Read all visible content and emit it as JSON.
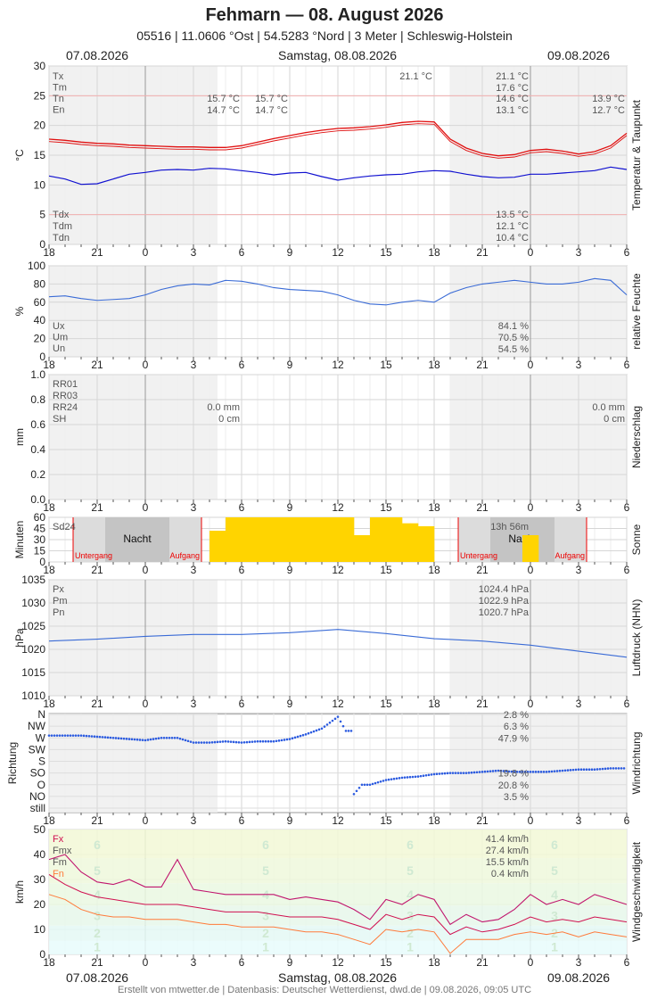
{
  "header": {
    "title": "Fehmarn  —  08. August 2026",
    "subtitle": "05516  |  11.0606 °Ost  |  54.5283 °Nord  |  3 Meter  |  Schleswig-Holstein",
    "day_prev": "07.08.2026",
    "day_main": "Samstag, 08.08.2026",
    "day_next": "09.08.2026"
  },
  "footer": "Erstellt von mtwetter.de | Datenbasis: Deutscher Wetterdienst, dwd.de | 09.08.2026, 09:05 UTC",
  "colors": {
    "temp": "#e01010",
    "dew": "#1010d0",
    "line": "#3a6bd6",
    "sun": "#ffd400",
    "gust": "#c0156e",
    "wind": "#d01050",
    "windmin": "#ff7a3a"
  },
  "chart_data": [
    {
      "id": "temperature",
      "type": "line",
      "side_label": "Temperatur & Taupunkt",
      "ylabel": "°C",
      "ylim": [
        0,
        30
      ],
      "yticks": [
        0,
        5,
        10,
        15,
        20,
        25,
        30
      ],
      "xticks": [
        "18",
        "21",
        "0",
        "3",
        "6",
        "9",
        "12",
        "15",
        "18",
        "21",
        "0",
        "3",
        "6"
      ],
      "series": [
        {
          "name": "Temperatur",
          "x": [
            0,
            1,
            2,
            3,
            4,
            5,
            6,
            7,
            8,
            9,
            10,
            11,
            12,
            13,
            14,
            15,
            16,
            17,
            18,
            19,
            20,
            21,
            22,
            23,
            24,
            25,
            26,
            27,
            28,
            29,
            30,
            31,
            32,
            33,
            34,
            35,
            36
          ],
          "values": [
            17.7,
            17.5,
            17.2,
            17.0,
            16.9,
            16.7,
            16.6,
            16.5,
            16.4,
            16.4,
            16.3,
            16.3,
            16.6,
            17.2,
            17.8,
            18.3,
            18.8,
            19.2,
            19.5,
            19.6,
            19.8,
            20.1,
            20.5,
            20.7,
            20.6,
            17.7,
            16.2,
            15.3,
            14.9,
            15.1,
            15.8,
            16.0,
            15.7,
            15.2,
            15.6,
            16.6,
            18.7
          ]
        },
        {
          "name": "Taupunkt",
          "x": [
            0,
            1,
            2,
            3,
            4,
            5,
            6,
            7,
            8,
            9,
            10,
            11,
            12,
            13,
            14,
            15,
            16,
            17,
            18,
            19,
            20,
            21,
            22,
            23,
            24,
            25,
            26,
            27,
            28,
            29,
            30,
            31,
            32,
            33,
            34,
            35,
            36
          ],
          "values": [
            11.5,
            11.0,
            10.1,
            10.2,
            11.0,
            11.8,
            12.1,
            12.5,
            12.6,
            12.5,
            12.8,
            12.7,
            12.4,
            12.1,
            11.7,
            12.0,
            12.1,
            11.4,
            10.8,
            11.2,
            11.5,
            11.7,
            11.8,
            12.2,
            12.4,
            12.3,
            11.8,
            11.4,
            11.2,
            11.3,
            11.8,
            11.8,
            12.0,
            12.2,
            12.4,
            13.0,
            12.6
          ]
        }
      ],
      "labels": {
        "left": [
          "Tx",
          "Tm",
          "Tn",
          "En"
        ],
        "left_bottom": [
          "Tdx",
          "Tdm",
          "Tdn"
        ],
        "day1_Tn": "15.7 °C",
        "day1_En": "14.7 °C",
        "day1b_Tn": "15.7 °C",
        "day1b_En": "14.7 °C",
        "day2_Tx_marker": "21.1 °C",
        "day2_Tx": "21.1 °C",
        "day2_Tm": "17.6 °C",
        "day2_Tn": "14.6 °C",
        "day2_En": "13.1 °C",
        "day3_Tn": "13.9 °C",
        "day3_En": "12.7 °C",
        "day2_Tdx": "13.5 °C",
        "day2_Tdm": "12.1 °C",
        "day2_Tdn": "10.4 °C"
      }
    },
    {
      "id": "humidity",
      "type": "line",
      "side_label": "relative Feuchte",
      "ylabel": "%",
      "ylim": [
        0,
        100
      ],
      "yticks": [
        0,
        20,
        40,
        60,
        80,
        100
      ],
      "series": [
        {
          "name": "relative Feuchte",
          "x": [
            0,
            1,
            2,
            3,
            4,
            5,
            6,
            7,
            8,
            9,
            10,
            11,
            12,
            13,
            14,
            15,
            16,
            17,
            18,
            19,
            20,
            21,
            22,
            23,
            24,
            25,
            26,
            27,
            28,
            29,
            30,
            31,
            32,
            33,
            34,
            35,
            36
          ],
          "values": [
            66,
            67,
            64,
            62,
            63,
            64,
            68,
            74,
            78,
            80,
            79,
            84,
            83,
            80,
            76,
            74,
            73,
            72,
            68,
            62,
            58,
            57,
            60,
            62,
            60,
            70,
            76,
            80,
            82,
            84,
            82,
            80,
            80,
            82,
            86,
            84,
            68
          ]
        }
      ],
      "labels": {
        "left": [
          "Ux",
          "Um",
          "Un"
        ],
        "Ux": "84.1 %",
        "Um": "70.5 %",
        "Un": "54.5 %"
      }
    },
    {
      "id": "precipitation",
      "type": "bar",
      "side_label": "Niederschlag",
      "ylabel": "mm",
      "ylim": [
        0,
        1.0
      ],
      "yticks": [
        "0.0",
        "0.2",
        "0.4",
        "0.6",
        "0.8",
        "1.0"
      ],
      "values": [],
      "labels": {
        "left": [
          "RR01",
          "RR03",
          "RR24",
          "SH"
        ],
        "day1_RR24": "0.0 mm",
        "day1_SH": "0 cm",
        "day3_RR24": "0.0 mm",
        "day3_SH": "0 cm"
      }
    },
    {
      "id": "sunshine",
      "type": "bar",
      "side_label": "Sonne",
      "ylabel": "Minuten",
      "ylim": [
        0,
        60
      ],
      "yticks": [
        0,
        15,
        30,
        45,
        60
      ],
      "x": [
        20,
        21,
        22,
        23,
        24,
        25,
        26,
        27,
        28,
        29,
        30,
        31,
        32,
        33,
        34,
        35,
        36,
        37,
        38,
        39,
        40,
        41,
        42,
        43,
        44,
        45,
        46,
        47,
        48,
        49,
        50,
        51,
        52,
        53,
        54,
        55,
        56,
        57,
        58,
        59,
        60
      ],
      "values": [
        42,
        42,
        60,
        60,
        60,
        60,
        60,
        60,
        60,
        60,
        60,
        60,
        60,
        60,
        60,
        60,
        60,
        60,
        36,
        36,
        60,
        60,
        60,
        60,
        52,
        52,
        48,
        48,
        0,
        0,
        0,
        0,
        0,
        0,
        0,
        0,
        0,
        0,
        0,
        36,
        36
      ],
      "labels": {
        "sd24": "Sd24",
        "total": "13h 56m",
        "night": "Nacht",
        "sunset": "Untergang",
        "sunrise": "Aufgang"
      }
    },
    {
      "id": "pressure",
      "type": "line",
      "side_label": "Luftdruck (NHN)",
      "ylabel": "hPa",
      "ylim": [
        1010,
        1035
      ],
      "yticks": [
        1010,
        1015,
        1020,
        1025,
        1030,
        1035
      ],
      "series": [
        {
          "name": "Luftdruck",
          "x": [
            0,
            3,
            6,
            9,
            12,
            15,
            18,
            21,
            24,
            27,
            30,
            33,
            36
          ],
          "values": [
            1021.8,
            1022.2,
            1022.8,
            1023.2,
            1023.2,
            1023.6,
            1024.3,
            1023.4,
            1022.3,
            1021.8,
            1020.9,
            1019.6,
            1018.3
          ]
        }
      ],
      "labels": {
        "left": [
          "Px",
          "Pm",
          "Pn"
        ],
        "Px": "1024.4 hPa",
        "Pm": "1022.9 hPa",
        "Pn": "1020.7 hPa"
      }
    },
    {
      "id": "winddirection",
      "type": "scatter",
      "side_label": "Windrichtung",
      "ylabel": "Richtung",
      "categories": [
        "still",
        "NO",
        "O",
        "SO",
        "S",
        "SW",
        "W",
        "NW",
        "N"
      ],
      "series": [
        {
          "name": "Richtung",
          "x": [
            0,
            2,
            4,
            5,
            6,
            7,
            8,
            9,
            10,
            11,
            12,
            13,
            14,
            15,
            16,
            17,
            18,
            18.5,
            19,
            19.5,
            20,
            20.5,
            21,
            22,
            23,
            24,
            25,
            26,
            27,
            28,
            29,
            30,
            31,
            32,
            33,
            34,
            35,
            36
          ],
          "values": [
            6.2,
            6.2,
            6.0,
            5.9,
            5.8,
            6.0,
            6.0,
            5.6,
            5.6,
            5.7,
            5.6,
            5.7,
            5.7,
            5.9,
            6.3,
            6.8,
            7.8,
            6.6,
            1.2,
            2.0,
            2.0,
            2.2,
            2.4,
            2.6,
            2.7,
            2.9,
            3.0,
            3.0,
            3.1,
            3.2,
            3.1,
            3.1,
            3.1,
            3.2,
            3.3,
            3.3,
            3.4,
            3.4
          ]
        }
      ],
      "labels": {
        "N": "2.8 %",
        "NW": "6.3 %",
        "W": "47.9 %",
        "SO": "19.8 %",
        "O": "20.8 %",
        "NO": "3.5 %"
      }
    },
    {
      "id": "windspeed",
      "type": "line",
      "side_label": "Windgeschwindigkeit",
      "ylabel": "km/h",
      "ylim": [
        0,
        50
      ],
      "yticks": [
        0,
        10,
        20,
        30,
        40,
        50
      ],
      "series": [
        {
          "name": "Fx",
          "x": [
            0,
            1,
            2,
            3,
            4,
            5,
            6,
            7,
            8,
            9,
            10,
            11,
            12,
            13,
            14,
            15,
            16,
            17,
            18,
            19,
            20,
            21,
            22,
            23,
            24,
            25,
            26,
            27,
            28,
            29,
            30,
            31,
            32,
            33,
            34,
            35,
            36
          ],
          "values": [
            38,
            40,
            33,
            29,
            28,
            30,
            27,
            27,
            38,
            26,
            25,
            24,
            24,
            24,
            24,
            22,
            23,
            22,
            21,
            18,
            14,
            22,
            20,
            24,
            22,
            12,
            16,
            13,
            14,
            18,
            24,
            20,
            22,
            20,
            24,
            22,
            20
          ]
        },
        {
          "name": "Fm",
          "x": [
            0,
            1,
            2,
            3,
            4,
            5,
            6,
            7,
            8,
            9,
            10,
            11,
            12,
            13,
            14,
            15,
            16,
            17,
            18,
            19,
            20,
            21,
            22,
            23,
            24,
            25,
            26,
            27,
            28,
            29,
            30,
            31,
            32,
            33,
            34,
            35,
            36
          ],
          "values": [
            32,
            28,
            25,
            23,
            22,
            21,
            20,
            20,
            20,
            19,
            18,
            17,
            17,
            17,
            16,
            15,
            15,
            15,
            14,
            12,
            10,
            16,
            14,
            16,
            15,
            8,
            11,
            9,
            10,
            12,
            15,
            13,
            14,
            13,
            15,
            14,
            13
          ]
        },
        {
          "name": "Fn",
          "x": [
            0,
            1,
            2,
            3,
            4,
            5,
            6,
            7,
            8,
            9,
            10,
            11,
            12,
            13,
            14,
            15,
            16,
            17,
            18,
            19,
            20,
            21,
            22,
            23,
            24,
            25,
            26,
            27,
            28,
            29,
            30,
            31,
            32,
            33,
            34,
            35,
            36
          ],
          "values": [
            24,
            22,
            18,
            16,
            15,
            15,
            14,
            14,
            14,
            13,
            12,
            12,
            11,
            11,
            11,
            10,
            9,
            9,
            8,
            6,
            4,
            10,
            9,
            10,
            9,
            0.4,
            6,
            6,
            6,
            8,
            9,
            8,
            9,
            7,
            9,
            8,
            7
          ]
        }
      ],
      "labels": {
        "left": [
          "Fx",
          "Fmx",
          "Fm",
          "Fn"
        ],
        "Fx": "41.4 km/h",
        "Fmx": "27.4 km/h",
        "Fm": "15.5 km/h",
        "Fn": "0.4 km/h",
        "beaufort": [
          "1",
          "2",
          "3",
          "4",
          "5",
          "6"
        ]
      }
    }
  ]
}
